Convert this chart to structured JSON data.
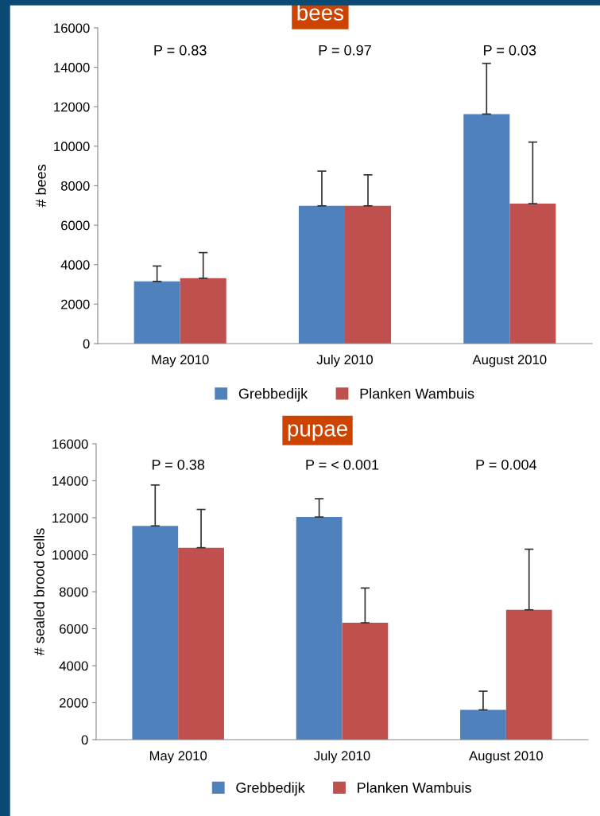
{
  "chart_data": [
    {
      "type": "bar",
      "title": "bees",
      "ylabel": "# bees",
      "categories": [
        "May 2010",
        "July 2010",
        "August 2010"
      ],
      "series": [
        {
          "name": "Grebbedijk",
          "color": "#4f81bd",
          "values": [
            3150,
            6980,
            11630
          ],
          "errors": [
            [
              3150,
              3930
            ],
            [
              6980,
              8740
            ],
            [
              11630,
              14200
            ]
          ]
        },
        {
          "name": "Planken Wambuis",
          "color": "#c0504d",
          "values": [
            3310,
            6980,
            7090
          ],
          "errors": [
            [
              3310,
              4610
            ],
            [
              6980,
              8550
            ],
            [
              7090,
              10210
            ]
          ]
        }
      ],
      "ylim": [
        0,
        16000
      ],
      "yticks": [
        0,
        2000,
        4000,
        6000,
        8000,
        10000,
        12000,
        14000,
        16000
      ],
      "grid": false,
      "legend": "bottom",
      "annotations": [
        "P = 0.83",
        "P = 0.97",
        "P = 0.03"
      ]
    },
    {
      "type": "bar",
      "title": "pupae",
      "ylabel": "# sealed brood cells",
      "categories": [
        "May 2010",
        "July 2010",
        "August 2010"
      ],
      "series": [
        {
          "name": "Grebbedijk",
          "color": "#4f81bd",
          "values": [
            11560,
            12040,
            1610
          ],
          "errors": [
            [
              11560,
              13770
            ],
            [
              12040,
              13030
            ],
            [
              1610,
              2620
            ]
          ]
        },
        {
          "name": "Planken Wambuis",
          "color": "#c0504d",
          "values": [
            10380,
            6320,
            7020
          ],
          "errors": [
            [
              10380,
              12450
            ],
            [
              6320,
              8200
            ],
            [
              7020,
              10300
            ]
          ]
        }
      ],
      "ylim": [
        0,
        16000
      ],
      "yticks": [
        0,
        2000,
        4000,
        6000,
        8000,
        10000,
        12000,
        14000,
        16000
      ],
      "grid": false,
      "legend": "bottom",
      "annotations": [
        "P = 0.38",
        "P = < 0.001",
        "P = 0.004"
      ]
    }
  ]
}
